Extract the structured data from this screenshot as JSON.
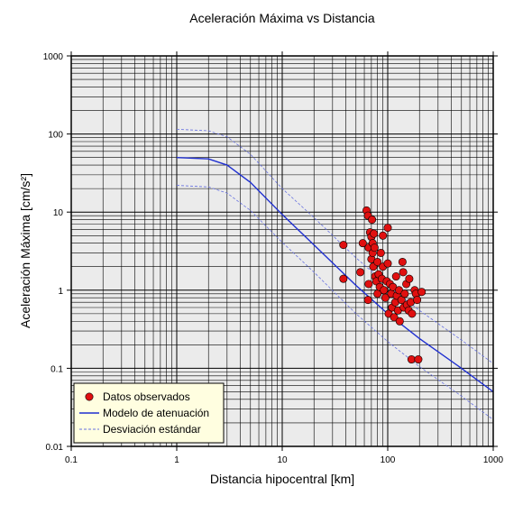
{
  "chart_data": {
    "type": "scatter",
    "title": "Aceleración Máxima vs Distancia",
    "xlabel": "Distancia hipocentral [km]",
    "ylabel": "Aceleración Máxima [cm/s²]",
    "xscale": "log",
    "yscale": "log",
    "xlim": [
      0.1,
      1000
    ],
    "ylim": [
      0.01,
      1000
    ],
    "x_ticks": [
      0.1,
      1,
      10,
      100,
      1000
    ],
    "x_tick_labels": [
      "0.1",
      "1",
      "10",
      "100",
      "1000"
    ],
    "y_ticks": [
      0.01,
      0.1,
      1,
      10,
      100,
      1000
    ],
    "y_tick_labels": [
      "0.01",
      "0.1",
      "1",
      "10",
      "100",
      "1000"
    ],
    "grid": true,
    "legend_position": "bottom-left",
    "colors": {
      "background": "#ebebeb",
      "points": "#e01010",
      "model": "#1f2fd0",
      "deviation": "#6670e0"
    },
    "legend": [
      {
        "label": "Datos observados",
        "style": "point"
      },
      {
        "label": "Modelo de atenuación",
        "style": "solid"
      },
      {
        "label": "Desviación estándar",
        "style": "dashed"
      }
    ],
    "series": [
      {
        "name": "Modelo de atenuación",
        "style": "solid",
        "x": [
          1,
          2,
          3,
          5,
          10,
          20,
          50,
          100,
          200,
          500,
          1000
        ],
        "y": [
          50,
          48,
          40,
          24,
          9.3,
          3.8,
          1.15,
          0.5,
          0.24,
          0.1,
          0.05
        ]
      },
      {
        "name": "Desviación estándar (superior)",
        "style": "dashed",
        "x": [
          1,
          2,
          3,
          5,
          10,
          20,
          50,
          100,
          200,
          500,
          1000
        ],
        "y": [
          115,
          110,
          92,
          55,
          20,
          8.5,
          2.6,
          1.15,
          0.55,
          0.23,
          0.115
        ]
      },
      {
        "name": "Desviación estándar (inferior)",
        "style": "dashed",
        "x": [
          1,
          2,
          3,
          5,
          10,
          20,
          50,
          100,
          200,
          500,
          1000
        ],
        "y": [
          22,
          21,
          17.5,
          10.5,
          4.1,
          1.7,
          0.5,
          0.22,
          0.105,
          0.044,
          0.022
        ]
      },
      {
        "name": "Datos observados",
        "style": "point",
        "points": [
          [
            38,
            3.8
          ],
          [
            38,
            1.4
          ],
          [
            55,
            1.7
          ],
          [
            58,
            4.0
          ],
          [
            63,
            10.5
          ],
          [
            65,
            9.0
          ],
          [
            66,
            3.5
          ],
          [
            66,
            1.2
          ],
          [
            65,
            0.75
          ],
          [
            68,
            5.5
          ],
          [
            70,
            4.8
          ],
          [
            70,
            2.5
          ],
          [
            71,
            8.0
          ],
          [
            72,
            4.0
          ],
          [
            72,
            3.0
          ],
          [
            73,
            2.0
          ],
          [
            74,
            5.3
          ],
          [
            75,
            3.5
          ],
          [
            76,
            1.5
          ],
          [
            78,
            1.3
          ],
          [
            80,
            2.3
          ],
          [
            80,
            0.9
          ],
          [
            82,
            1.6
          ],
          [
            84,
            1.1
          ],
          [
            86,
            3.0
          ],
          [
            88,
            1.4
          ],
          [
            90,
            5.0
          ],
          [
            90,
            2.0
          ],
          [
            92,
            1.0
          ],
          [
            95,
            0.8
          ],
          [
            98,
            1.3
          ],
          [
            100,
            6.3
          ],
          [
            100,
            2.2
          ],
          [
            102,
            0.5
          ],
          [
            105,
            1.2
          ],
          [
            108,
            0.9
          ],
          [
            110,
            0.6
          ],
          [
            112,
            1.1
          ],
          [
            115,
            0.45
          ],
          [
            118,
            0.7
          ],
          [
            120,
            1.5
          ],
          [
            122,
            0.85
          ],
          [
            125,
            0.55
          ],
          [
            128,
            1.0
          ],
          [
            130,
            0.4
          ],
          [
            135,
            0.75
          ],
          [
            138,
            2.3
          ],
          [
            140,
            1.7
          ],
          [
            142,
            0.6
          ],
          [
            145,
            0.9
          ],
          [
            150,
            1.2
          ],
          [
            152,
            0.65
          ],
          [
            158,
            0.55
          ],
          [
            160,
            1.4
          ],
          [
            165,
            0.7
          ],
          [
            168,
            0.13
          ],
          [
            170,
            0.5
          ],
          [
            180,
            1.0
          ],
          [
            185,
            0.9
          ],
          [
            190,
            0.75
          ],
          [
            195,
            0.13
          ],
          [
            210,
            0.95
          ]
        ]
      }
    ]
  }
}
